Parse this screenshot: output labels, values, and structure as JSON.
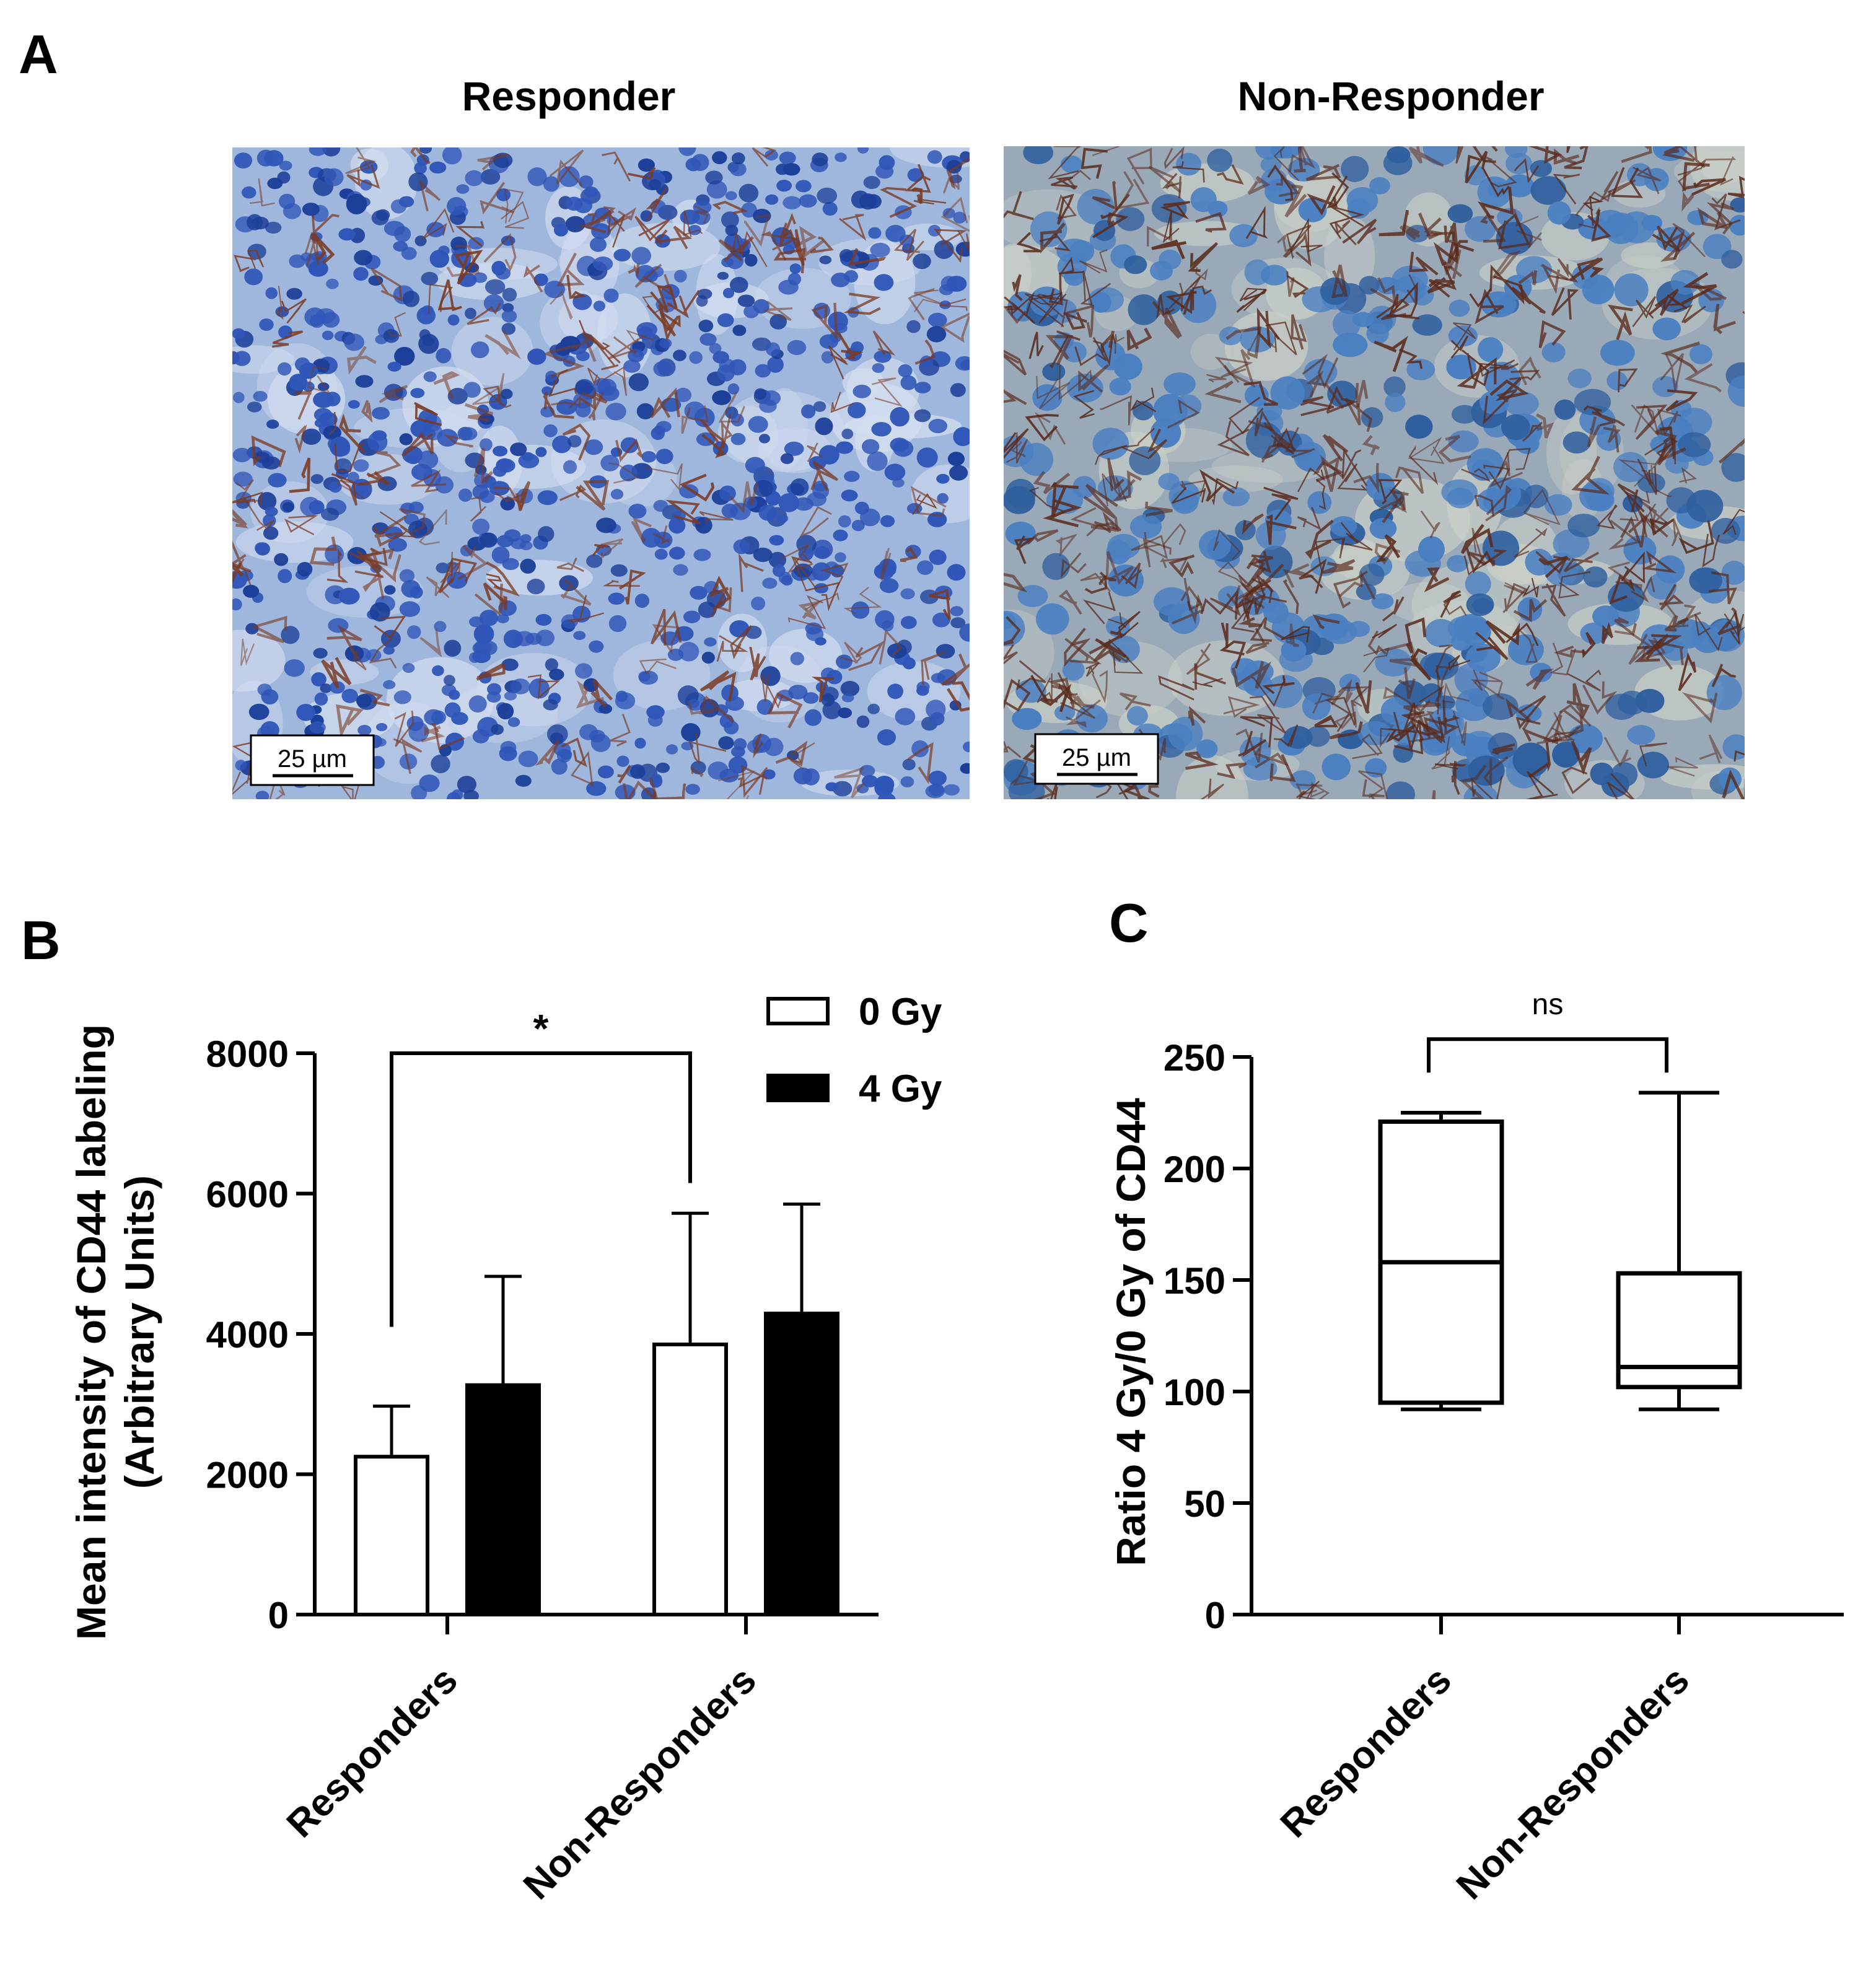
{
  "panels": {
    "A": {
      "letter": "A",
      "images": [
        {
          "title": "Responder",
          "scale_bar": "25 µm",
          "palette": {
            "bg": "#9fb7dc",
            "stroma": "#d3ddef",
            "nucleus": "#2f56b8",
            "nucleus_dark": "#1c3f99",
            "stain": "#7a3a22"
          }
        },
        {
          "title": "Non-Responder",
          "scale_bar": "25 µm",
          "palette": {
            "bg": "#9aa9b8",
            "stroma": "#c9cfc7",
            "nucleus": "#4a7fc1",
            "nucleus_dark": "#2f5f9e",
            "stain": "#5a2a1a"
          }
        }
      ]
    },
    "B": {
      "letter": "B"
    },
    "C": {
      "letter": "C"
    }
  },
  "chart_data": [
    {
      "panel": "B",
      "type": "bar",
      "categories": [
        "Responders",
        "Non-Responders"
      ],
      "series": [
        {
          "name": "0 Gy",
          "values": [
            2250,
            3850
          ],
          "error": [
            720,
            1870
          ],
          "fill": "#ffffff"
        },
        {
          "name": "4 Gy",
          "values": [
            3270,
            4290
          ],
          "error": [
            1550,
            1560
          ],
          "fill": "#000000"
        }
      ],
      "ylabel": [
        "Mean intensity of CD44 labeling",
        "(Arbitrary Units)"
      ],
      "ylim": [
        0,
        8000
      ],
      "yticks": [
        0,
        2000,
        4000,
        6000,
        8000
      ],
      "ytick_labels": [
        "0",
        "2000",
        "4000",
        "6000",
        "8000"
      ],
      "significance": {
        "label": "*",
        "from_category": 0,
        "to_category": 1,
        "left_foot": 4100,
        "right_foot": 6150,
        "level": 8000
      },
      "legend": {
        "placement": "top-right"
      }
    },
    {
      "panel": "C",
      "type": "box",
      "categories": [
        "Responders",
        "Non-Responders"
      ],
      "boxes": [
        {
          "min": 92,
          "q1": 95,
          "median": 158,
          "q3": 221,
          "max": 225
        },
        {
          "min": 92,
          "q1": 102,
          "median": 111,
          "q3": 153,
          "max": 234
        }
      ],
      "ylabel": "Ratio 4 Gy/0 Gy of CD44",
      "ylim": [
        0,
        250
      ],
      "yticks": [
        0,
        50,
        100,
        150,
        200,
        250
      ],
      "ytick_labels": [
        "0",
        "50",
        "100",
        "150",
        "200",
        "250"
      ],
      "significance": {
        "label": "ns",
        "from_category": 0,
        "to_category": 1,
        "level": 258,
        "foot": 243
      }
    }
  ]
}
